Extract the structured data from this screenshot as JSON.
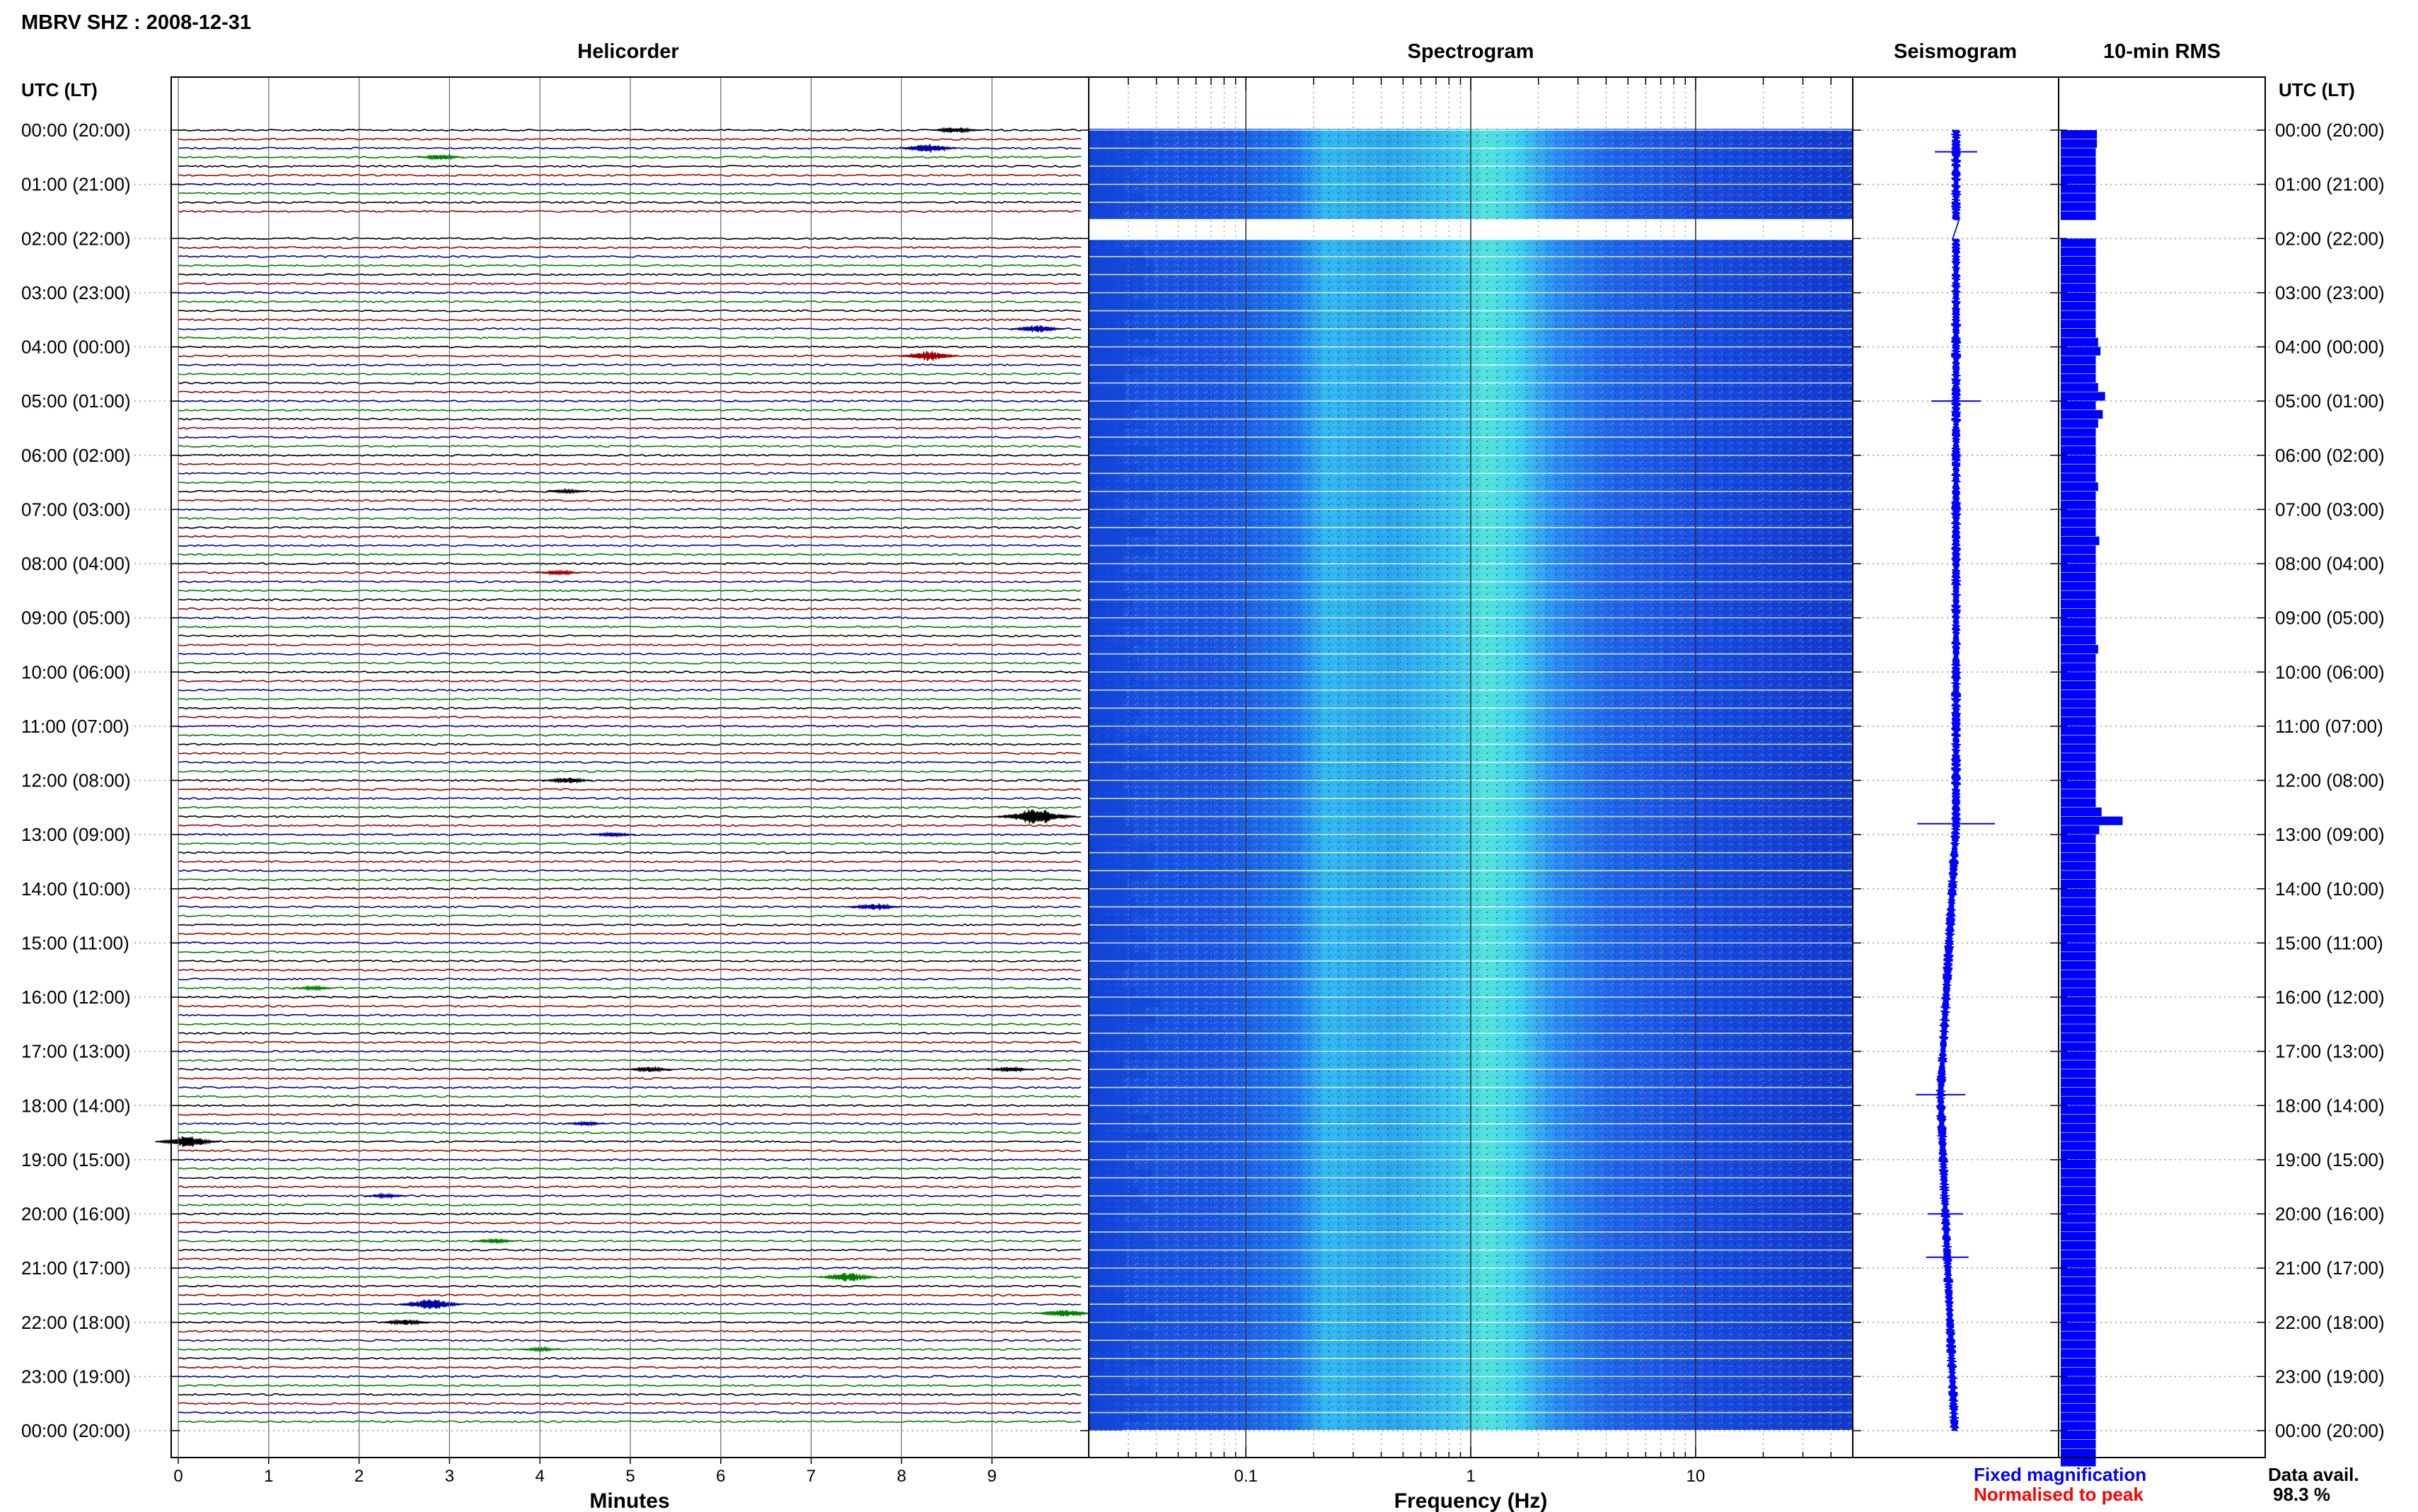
{
  "header": {
    "station_title": "MBRV SHZ : 2008-12-31",
    "panel_titles": [
      "Helicorder",
      "Spectrogram",
      "Seismogram",
      "10-min RMS"
    ],
    "left_axis_header": "UTC (LT)",
    "right_axis_header": "UTC (LT)"
  },
  "footer": {
    "helicorder_xlabel": "Minutes",
    "spectrogram_xlabel": "Frequency (Hz)",
    "legend_fixed": "Fixed magnification",
    "legend_normalised": "Normalised to peak",
    "data_avail_label": "Data avail.",
    "data_avail_value": "98.3 %"
  },
  "colors": {
    "trace_black": "#000000",
    "trace_red": "#a00000",
    "trace_blue": "#0000a0",
    "trace_green": "#008000",
    "rms_fill": "#0000ff",
    "seismogram": "#0000ff",
    "legend_blue": "#0000ff",
    "legend_red": "#ff0000"
  },
  "chart_data": [
    {
      "type": "line",
      "name": "Helicorder",
      "title": "Helicorder",
      "xlabel": "Minutes",
      "xlim": [
        0,
        10
      ],
      "x_ticks": [
        "0",
        "1",
        "2",
        "3",
        "4",
        "5",
        "6",
        "7",
        "8",
        "9"
      ],
      "hour_labels": [
        "00:00 (20:00)",
        "01:00 (21:00)",
        "02:00 (22:00)",
        "03:00 (23:00)",
        "04:00 (00:00)",
        "05:00 (01:00)",
        "06:00 (02:00)",
        "07:00 (03:00)",
        "08:00 (04:00)",
        "09:00 (05:00)",
        "10:00 (06:00)",
        "11:00 (07:00)",
        "12:00 (08:00)",
        "13:00 (09:00)",
        "14:00 (10:00)",
        "15:00 (11:00)",
        "16:00 (12:00)",
        "17:00 (13:00)",
        "18:00 (14:00)",
        "19:00 (15:00)",
        "20:00 (16:00)",
        "21:00 (17:00)",
        "22:00 (18:00)",
        "23:00 (19:00)",
        "00:00 (20:00)"
      ],
      "rows_per_hour": 6,
      "missing_rows": [
        10,
        11
      ],
      "events": [
        {
          "row": 0,
          "minute": 8.6,
          "amplitude": 0.5
        },
        {
          "row": 2,
          "minute": 8.3,
          "amplitude": 0.7
        },
        {
          "row": 3,
          "minute": 2.9,
          "amplitude": 0.4
        },
        {
          "row": 22,
          "minute": 9.5,
          "amplitude": 0.6
        },
        {
          "row": 25,
          "minute": 8.3,
          "amplitude": 0.8
        },
        {
          "row": 40,
          "minute": 4.3,
          "amplitude": 0.3
        },
        {
          "row": 49,
          "minute": 4.2,
          "amplitude": 0.4
        },
        {
          "row": 72,
          "minute": 4.3,
          "amplitude": 0.5
        },
        {
          "row": 76,
          "minute": 9.5,
          "amplitude": 1.3
        },
        {
          "row": 78,
          "minute": 4.8,
          "amplitude": 0.4
        },
        {
          "row": 86,
          "minute": 7.7,
          "amplitude": 0.6
        },
        {
          "row": 95,
          "minute": 1.5,
          "amplitude": 0.3
        },
        {
          "row": 104,
          "minute": 5.2,
          "amplitude": 0.4
        },
        {
          "row": 104,
          "minute": 9.2,
          "amplitude": 0.4
        },
        {
          "row": 110,
          "minute": 4.5,
          "amplitude": 0.3
        },
        {
          "row": 112,
          "minute": 0.1,
          "amplitude": 0.9
        },
        {
          "row": 118,
          "minute": 2.3,
          "amplitude": 0.3
        },
        {
          "row": 123,
          "minute": 3.5,
          "amplitude": 0.4
        },
        {
          "row": 127,
          "minute": 7.4,
          "amplitude": 0.8
        },
        {
          "row": 130,
          "minute": 2.8,
          "amplitude": 0.9
        },
        {
          "row": 131,
          "minute": 9.8,
          "amplitude": 0.7
        },
        {
          "row": 132,
          "minute": 2.5,
          "amplitude": 0.5
        },
        {
          "row": 135,
          "minute": 4.0,
          "amplitude": 0.3
        }
      ]
    },
    {
      "type": "heatmap",
      "name": "Spectrogram",
      "title": "Spectrogram",
      "xlabel": "Frequency (Hz)",
      "x_scale": "log",
      "xlim": [
        0.02,
        50
      ],
      "x_tick_labels": [
        "0.1",
        "1",
        "10"
      ],
      "peak_band_hz": [
        0.2,
        2.0
      ],
      "strongest_hz": 1.0
    },
    {
      "type": "line",
      "name": "Seismogram",
      "title": "Seismogram",
      "spikes": [
        {
          "hour": 0.4,
          "amplitude": 0.4
        },
        {
          "hour": 5.0,
          "amplitude": 0.5
        },
        {
          "hour": 12.8,
          "amplitude": 0.9
        },
        {
          "hour": 17.8,
          "amplitude": 0.5
        },
        {
          "hour": 20.0,
          "amplitude": 0.3
        },
        {
          "hour": 20.8,
          "amplitude": 0.4
        }
      ]
    },
    {
      "type": "bar",
      "name": "10-min RMS",
      "title": "10-min RMS",
      "orientation": "horizontal",
      "bins_per_hour": 6,
      "values": [
        3.1,
        3.1,
        3.0,
        3.0,
        3.0,
        3.0,
        3.0,
        3.0,
        3.0,
        3.0,
        0,
        0,
        3.0,
        3.0,
        3.0,
        3.0,
        3.0,
        3.0,
        3.0,
        3.0,
        3.0,
        3.0,
        3.0,
        3.2,
        3.4,
        3.0,
        3.0,
        3.0,
        3.2,
        3.8,
        3.0,
        3.6,
        3.2,
        3.0,
        3.0,
        3.0,
        3.0,
        3.0,
        3.0,
        3.2,
        3.0,
        3.0,
        3.0,
        3.0,
        3.0,
        3.3,
        3.0,
        3.0,
        3.0,
        3.0,
        3.0,
        3.0,
        3.0,
        3.0,
        3.0,
        3.0,
        3.0,
        3.2,
        3.0,
        3.0,
        3.0,
        3.0,
        3.0,
        3.0,
        3.0,
        3.0,
        3.0,
        3.0,
        3.0,
        3.0,
        3.0,
        3.0,
        3.0,
        3.0,
        3.0,
        3.5,
        5.3,
        3.3,
        3.0,
        3.0,
        3.0,
        3.0,
        3.0,
        3.0,
        3.0,
        3.0,
        3.0,
        3.0,
        3.0,
        3.0,
        3.0,
        3.0,
        3.0,
        3.0,
        3.0,
        3.0,
        3.0,
        3.0,
        3.0,
        3.0,
        3.0,
        3.0,
        3.0,
        3.0,
        3.0,
        3.0,
        3.0,
        3.0,
        3.0,
        3.0,
        3.0,
        3.0,
        3.0,
        3.0,
        3.0,
        3.0,
        3.0,
        3.0,
        3.0,
        3.0,
        3.0,
        3.0,
        3.0,
        3.0,
        3.0,
        3.0,
        3.0,
        3.0,
        3.0,
        3.0,
        3.0,
        3.0,
        3.0,
        3.0,
        3.0,
        3.0,
        3.0,
        3.0,
        3.0,
        3.0,
        3.0,
        3.0,
        3.0,
        3.0,
        3.0,
        3.0,
        3.0,
        3.0
      ]
    }
  ]
}
